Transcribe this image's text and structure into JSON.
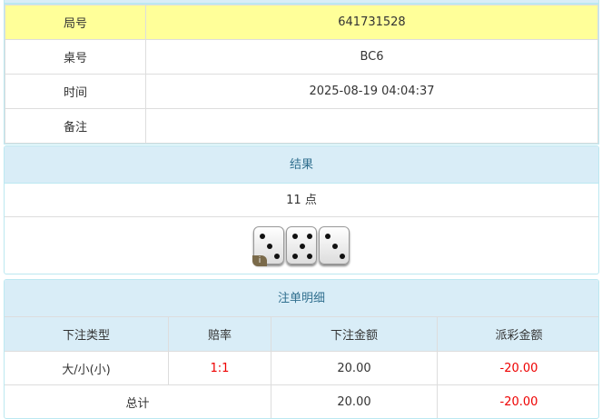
{
  "info": {
    "rows": [
      {
        "label": "局号",
        "value": "641731528"
      },
      {
        "label": "桌号",
        "value": "BC6"
      },
      {
        "label": "时间",
        "value": "2025-08-19 04:04:37"
      },
      {
        "label": "备注",
        "value": ""
      }
    ]
  },
  "result": {
    "title": "结果",
    "points": "11 点",
    "dice": [
      3,
      5,
      3
    ],
    "info_badge": "i"
  },
  "bets": {
    "title": "注单明细",
    "headers": [
      "下注类型",
      "赔率",
      "下注金额",
      "派彩金额"
    ],
    "rows": [
      {
        "type": "大/小(小)",
        "odds": "1:1",
        "amount": "20.00",
        "payout": "-20.00"
      }
    ],
    "total": {
      "label": "总计",
      "amount": "20.00",
      "payout": "-20.00"
    }
  },
  "colors": {
    "highlight": "#ffff99",
    "panel_header": "#d9edf7",
    "negative": "#ee0000"
  }
}
